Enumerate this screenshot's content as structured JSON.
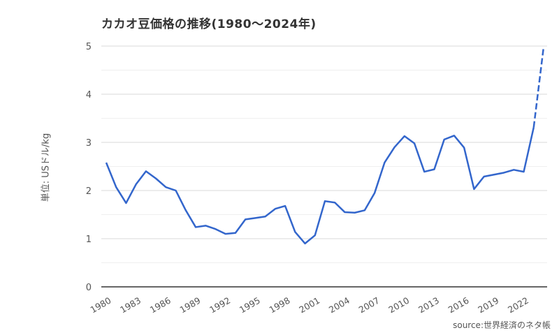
{
  "title": "カカオ豆価格の推移(1980〜2024年)",
  "ylabel": "単位: USドル/kg",
  "source": "source:世界経済のネタ帳",
  "colors": {
    "line": "#3366cc",
    "grid": "#e0e0e0",
    "axis": "#333333",
    "text": "#555555"
  },
  "chart_data": {
    "type": "line",
    "title": "カカオ豆価格の推移(1980〜2024年)",
    "xlabel": "",
    "ylabel": "単位: USドル/kg",
    "ylim": [
      0,
      5
    ],
    "yticks": [
      0,
      1,
      2,
      3,
      4,
      5
    ],
    "xtick_labels": [
      "1980",
      "1983",
      "1986",
      "1989",
      "1992",
      "1995",
      "1998",
      "2001",
      "2004",
      "2007",
      "2010",
      "2013",
      "2016",
      "2019",
      "2022"
    ],
    "grid": true,
    "legend": null,
    "annotations": [
      "2023→2024 segment drawn dashed (estimate)"
    ],
    "x": [
      1980,
      1981,
      1982,
      1983,
      1984,
      1985,
      1986,
      1987,
      1988,
      1989,
      1990,
      1991,
      1992,
      1993,
      1994,
      1995,
      1996,
      1997,
      1998,
      1999,
      2000,
      2001,
      2002,
      2003,
      2004,
      2005,
      2006,
      2007,
      2008,
      2009,
      2010,
      2011,
      2012,
      2013,
      2014,
      2015,
      2016,
      2017,
      2018,
      2019,
      2020,
      2021,
      2022,
      2023,
      2024
    ],
    "series": [
      {
        "name": "カカオ豆価格",
        "values": [
          2.58,
          2.07,
          1.74,
          2.13,
          2.4,
          2.25,
          2.07,
          2.0,
          1.59,
          1.24,
          1.27,
          1.2,
          1.1,
          1.12,
          1.4,
          1.43,
          1.46,
          1.62,
          1.68,
          1.14,
          0.9,
          1.07,
          1.78,
          1.75,
          1.55,
          1.54,
          1.59,
          1.95,
          2.58,
          2.9,
          3.13,
          2.98,
          2.39,
          2.44,
          3.06,
          3.14,
          2.89,
          2.03,
          2.29,
          2.33,
          2.37,
          2.43,
          2.39,
          3.31,
          4.98
        ],
        "dashed_from_index": 43
      }
    ]
  }
}
